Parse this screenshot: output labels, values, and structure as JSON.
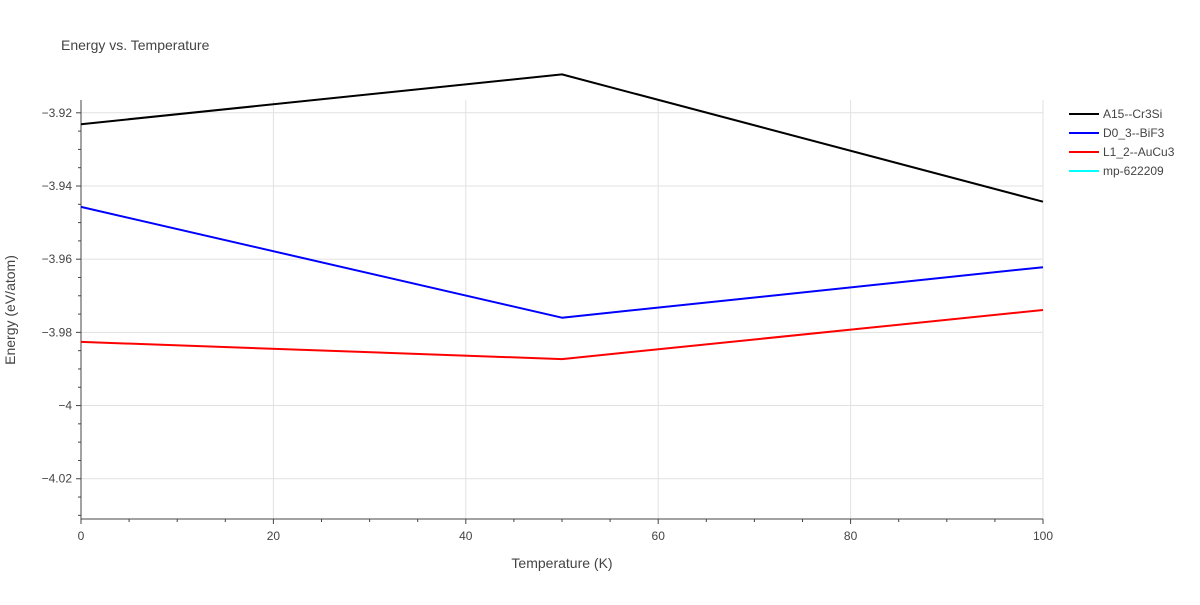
{
  "chart_data": {
    "type": "line",
    "title": "Energy vs. Temperature",
    "xlabel": "Temperature (K)",
    "ylabel": "Energy (eV/atom)",
    "xlim": [
      0,
      100
    ],
    "ylim": [
      -4.031,
      -3.9165
    ],
    "x_ticks": [
      0,
      20,
      40,
      60,
      80,
      100
    ],
    "x_tick_labels": [
      "0",
      "20",
      "40",
      "60",
      "80",
      "100"
    ],
    "y_ticks": [
      -3.92,
      -3.94,
      -3.96,
      -3.98,
      -4.0,
      -4.02
    ],
    "y_tick_labels": [
      "−3.92",
      "−3.94",
      "−3.96",
      "−3.98",
      "−4",
      "−4.02"
    ],
    "grid": true,
    "legend_position": "top-right outside",
    "series": [
      {
        "name": "A15--Cr3Si",
        "color": "#000000",
        "x": [
          0,
          50,
          100
        ],
        "y": [
          -3.9231,
          -3.9095,
          -3.9443
        ]
      },
      {
        "name": "D0_3--BiF3",
        "color": "#0000ff",
        "x": [
          0,
          50,
          100
        ],
        "y": [
          -3.9457,
          -3.976,
          -3.9622
        ]
      },
      {
        "name": "L1_2--AuCu3",
        "color": "#ff0000",
        "x": [
          0,
          50,
          100
        ],
        "y": [
          -3.9826,
          -3.9873,
          -3.9739
        ]
      },
      {
        "name": "mp-622209",
        "color": "#00ffff",
        "x": [],
        "y": []
      }
    ]
  }
}
